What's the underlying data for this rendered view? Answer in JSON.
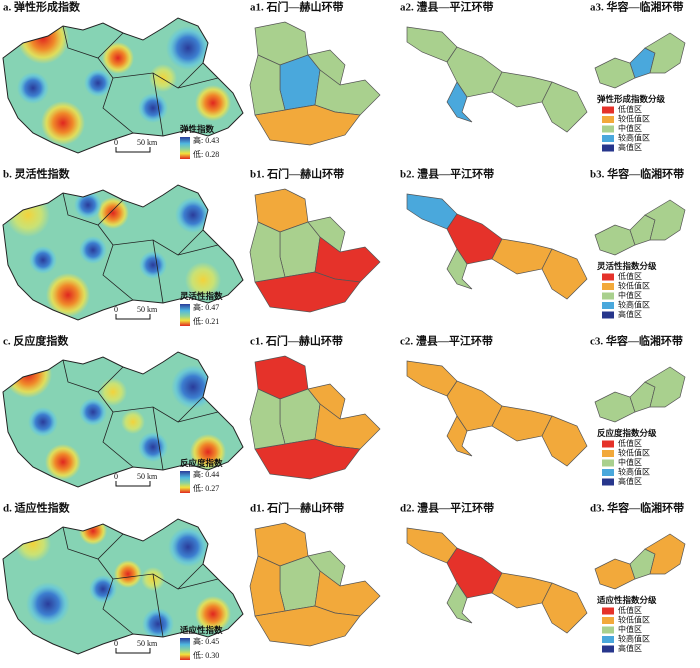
{
  "panels": [
    {
      "title": "a. 弹性形成指数",
      "index_legend": {
        "title": "弹性指数",
        "high": "高: 0.43",
        "low": "低: 0.28"
      },
      "scale": {
        "zero": "0",
        "distance": "50 km"
      },
      "sub_maps": [
        "a1. 石门—赫山环带",
        "a2. 澧县—平江环带",
        "a3. 华容—临湘环带"
      ],
      "class_legend": {
        "title": "弹性形成指数分级",
        "classes": [
          "低值区",
          "较低值区",
          "中值区",
          "较高值区",
          "高值区"
        ]
      }
    },
    {
      "title": "b. 灵活性指数",
      "index_legend": {
        "title": "灵活性指数",
        "high": "高: 0.47",
        "low": "低: 0.21"
      },
      "scale": {
        "zero": "0",
        "distance": "50 km"
      },
      "sub_maps": [
        "b1. 石门—赫山环带",
        "b2. 澧县—平江环带",
        "b3. 华容—临湘环带"
      ],
      "class_legend": {
        "title": "灵活性指数分级",
        "classes": [
          "低值区",
          "较低值区",
          "中值区",
          "较高值区",
          "高值区"
        ]
      }
    },
    {
      "title": "c. 反应度指数",
      "index_legend": {
        "title": "反应度指数",
        "high": "高: 0.44",
        "low": "低: 0.27"
      },
      "scale": {
        "zero": "0",
        "distance": "50 km"
      },
      "sub_maps": [
        "c1. 石门—赫山环带",
        "c2. 澧县—平江环带",
        "c3. 华容—临湘环带"
      ],
      "class_legend": {
        "title": "反应度指数分级",
        "classes": [
          "低值区",
          "较低值区",
          "中值区",
          "较高值区",
          "高值区"
        ]
      }
    },
    {
      "title": "d. 适应性指数",
      "index_legend": {
        "title": "适应性指数",
        "high": "高: 0.45",
        "low": "低: 0.30"
      },
      "scale": {
        "zero": "0",
        "distance": "50 km"
      },
      "sub_maps": [
        "d1. 石门—赫山环带",
        "d2. 澧县—平江环带",
        "d3. 华容—临湘环带"
      ],
      "class_legend": {
        "title": "适应性指数分级",
        "classes": [
          "低值区",
          "较低值区",
          "中值区",
          "较高值区",
          "高值区"
        ]
      }
    }
  ]
}
